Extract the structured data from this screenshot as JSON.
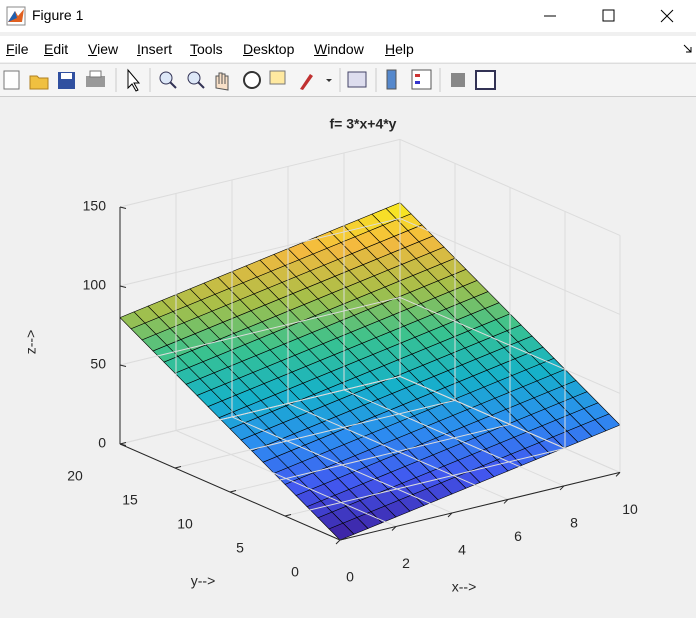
{
  "window": {
    "title": "Figure 1"
  },
  "menu": [
    "File",
    "Edit",
    "View",
    "Insert",
    "Tools",
    "Desktop",
    "Window",
    "Help"
  ],
  "chart_data": {
    "type": "surface",
    "title": "f= 3*x+4*y",
    "x_label": "x-->",
    "y_label": "y-->",
    "z_label": "z-->",
    "x": [
      0,
      0.5,
      1,
      1.5,
      2,
      2.5,
      3,
      3.5,
      4,
      4.5,
      5,
      5.5,
      6,
      6.5,
      7,
      7.5,
      8,
      8.5,
      9,
      9.5,
      10
    ],
    "y": [
      0,
      1,
      2,
      3,
      4,
      5,
      6,
      7,
      8,
      9,
      10,
      11,
      12,
      13,
      14,
      15,
      16,
      17,
      18,
      19,
      20
    ],
    "z": [
      [
        0,
        1.5,
        3,
        4.5,
        6,
        7.5,
        9,
        10.5,
        12,
        13.5,
        15,
        16.5,
        18,
        19.5,
        21,
        22.5,
        24,
        25.5,
        27,
        28.5,
        30
      ],
      [
        4,
        5.5,
        7,
        8.5,
        10,
        11.5,
        13,
        14.5,
        16,
        17.5,
        19,
        20.5,
        22,
        23.5,
        25,
        26.5,
        28,
        29.5,
        31,
        32.5,
        34
      ],
      [
        8,
        9.5,
        11,
        12.5,
        14,
        15.5,
        17,
        18.5,
        20,
        21.5,
        23,
        24.5,
        26,
        27.5,
        29,
        30.5,
        32,
        33.5,
        35,
        36.5,
        38
      ],
      [
        12,
        13.5,
        15,
        16.5,
        18,
        19.5,
        21,
        22.5,
        24,
        25.5,
        27,
        28.5,
        30,
        31.5,
        33,
        34.5,
        36,
        37.5,
        39,
        40.5,
        42
      ],
      [
        16,
        17.5,
        19,
        20.5,
        22,
        23.5,
        25,
        26.5,
        28,
        29.5,
        31,
        32.5,
        34,
        35.5,
        37,
        38.5,
        40,
        41.5,
        43,
        44.5,
        46
      ],
      [
        20,
        21.5,
        23,
        24.5,
        26,
        27.5,
        29,
        30.5,
        32,
        33.5,
        35,
        36.5,
        38,
        39.5,
        41,
        42.5,
        44,
        45.5,
        47,
        48.5,
        50
      ],
      [
        24,
        25.5,
        27,
        28.5,
        30,
        31.5,
        33,
        34.5,
        36,
        37.5,
        39,
        40.5,
        42,
        43.5,
        45,
        46.5,
        48,
        49.5,
        51,
        52.5,
        54
      ],
      [
        28,
        29.5,
        31,
        32.5,
        34,
        35.5,
        37,
        38.5,
        40,
        41.5,
        43,
        44.5,
        46,
        47.5,
        49,
        50.5,
        52,
        53.5,
        55,
        56.5,
        58
      ],
      [
        32,
        33.5,
        35,
        36.5,
        38,
        39.5,
        41,
        42.5,
        44,
        45.5,
        47,
        48.5,
        50,
        51.5,
        53,
        54.5,
        56,
        57.5,
        59,
        60.5,
        62
      ],
      [
        36,
        37.5,
        39,
        40.5,
        42,
        43.5,
        45,
        46.5,
        48,
        49.5,
        51,
        52.5,
        54,
        55.5,
        57,
        58.5,
        60,
        61.5,
        63,
        64.5,
        66
      ],
      [
        40,
        41.5,
        43,
        44.5,
        46,
        47.5,
        49,
        50.5,
        52,
        53.5,
        55,
        56.5,
        58,
        59.5,
        61,
        62.5,
        64,
        65.5,
        67,
        68.5,
        70
      ],
      [
        44,
        45.5,
        47,
        48.5,
        50,
        51.5,
        53,
        54.5,
        56,
        57.5,
        59,
        60.5,
        62,
        63.5,
        65,
        66.5,
        68,
        69.5,
        71,
        72.5,
        74
      ],
      [
        48,
        49.5,
        51,
        52.5,
        54,
        55.5,
        57,
        58.5,
        60,
        61.5,
        63,
        64.5,
        66,
        67.5,
        69,
        70.5,
        72,
        73.5,
        75,
        76.5,
        78
      ],
      [
        52,
        53.5,
        55,
        56.5,
        58,
        59.5,
        61,
        62.5,
        64,
        65.5,
        67,
        68.5,
        70,
        71.5,
        73,
        74.5,
        76,
        77.5,
        79,
        80.5,
        82
      ],
      [
        56,
        57.5,
        59,
        60.5,
        62,
        63.5,
        65,
        66.5,
        68,
        69.5,
        71,
        72.5,
        74,
        75.5,
        77,
        78.5,
        80,
        81.5,
        83,
        84.5,
        86
      ],
      [
        60,
        61.5,
        63,
        64.5,
        66,
        67.5,
        69,
        70.5,
        72,
        73.5,
        75,
        76.5,
        78,
        79.5,
        81,
        82.5,
        84,
        85.5,
        87,
        88.5,
        90
      ],
      [
        64,
        65.5,
        67,
        68.5,
        70,
        71.5,
        73,
        74.5,
        76,
        77.5,
        79,
        80.5,
        82,
        83.5,
        85,
        86.5,
        88,
        89.5,
        91,
        92.5,
        94
      ],
      [
        68,
        69.5,
        71,
        72.5,
        74,
        75.5,
        77,
        78.5,
        80,
        81.5,
        83,
        84.5,
        86,
        87.5,
        89,
        90.5,
        92,
        93.5,
        95,
        96.5,
        98
      ],
      [
        72,
        73.5,
        75,
        76.5,
        78,
        79.5,
        81,
        82.5,
        84,
        85.5,
        87,
        88.5,
        90,
        91.5,
        93,
        94.5,
        96,
        97.5,
        99,
        100.5,
        102
      ],
      [
        76,
        77.5,
        79,
        80.5,
        82,
        83.5,
        85,
        86.5,
        88,
        89.5,
        91,
        92.5,
        94,
        95.5,
        97,
        98.5,
        100,
        101.5,
        103,
        104.5,
        106
      ],
      [
        80,
        81.5,
        83,
        84.5,
        86,
        87.5,
        89,
        90.5,
        92,
        93.5,
        95,
        96.5,
        98,
        99.5,
        101,
        102.5,
        104,
        105.5,
        107,
        108.5,
        110
      ]
    ],
    "xlim": [
      0,
      10
    ],
    "ylim": [
      0,
      20
    ],
    "zlim": [
      0,
      150
    ],
    "xticks": [
      0,
      2,
      4,
      6,
      8,
      10
    ],
    "yticks": [
      0,
      5,
      10,
      15,
      20
    ],
    "zticks": [
      0,
      50,
      100,
      150
    ],
    "grid": true,
    "edge_color": "#000000",
    "colormap": [
      "#3e26a8",
      "#4258f0",
      "#2c8ef0",
      "#16b1c9",
      "#38c290",
      "#a6bf49",
      "#f4b93f",
      "#f9fb15"
    ]
  }
}
